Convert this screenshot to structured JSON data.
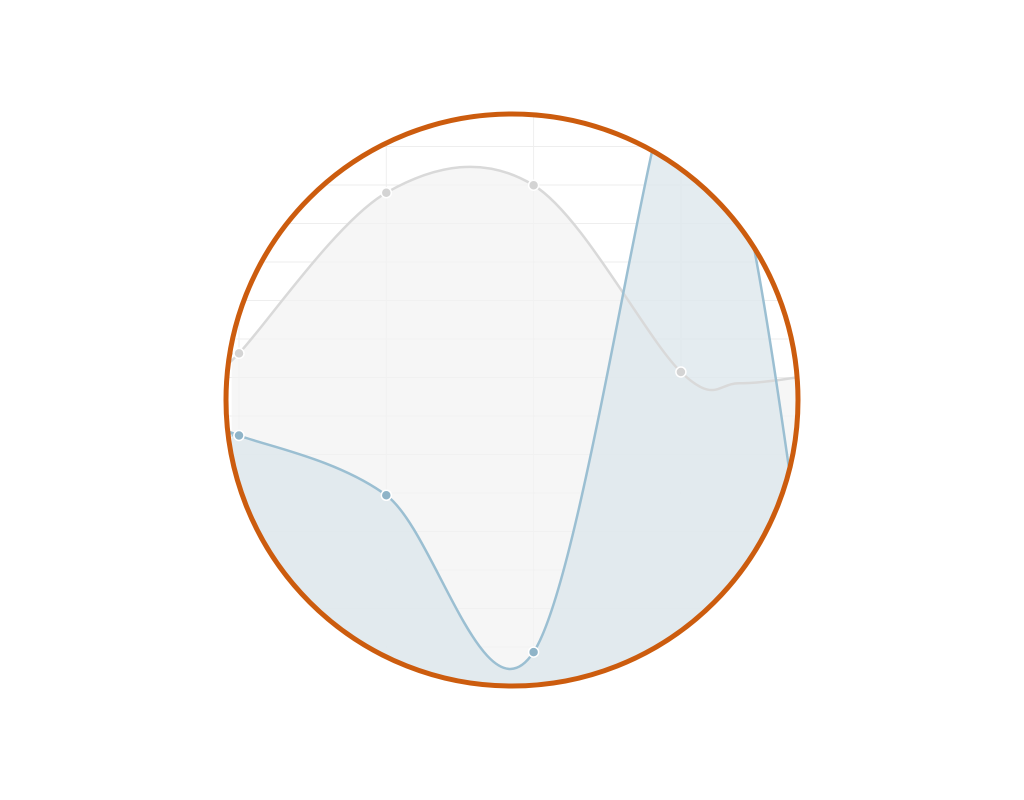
{
  "chart_data": {
    "type": "area",
    "title": "",
    "xlabel": "",
    "ylabel": "",
    "x": [
      0,
      1,
      2,
      3
    ],
    "xlim": [
      -0.05,
      3.87
    ],
    "ylim": [
      0,
      10
    ],
    "grid": true,
    "legend": "none",
    "series": [
      {
        "values": [
          8.8,
          13.1,
          13.3,
          8.3
        ],
        "tail": [
          [
            3.4,
            8.0
          ],
          [
            3.87,
            8.2
          ]
        ]
      },
      {
        "values": [
          6.6,
          5.0,
          0.8,
          17.0
        ],
        "tail": [
          [
            3.45,
            12.5
          ],
          [
            3.87,
            2.0
          ]
        ]
      }
    ],
    "colors": {
      "series1_line": "#d9d9d9",
      "series1_fill": "#f2f2f2",
      "series1_point": "#d4d4d4",
      "series2_line": "#9bbfd2",
      "series2_fill": "#dde7ec",
      "series2_point": "#8fb4c8",
      "ring": "#cc5c0e",
      "grid": "#eeeeee"
    }
  }
}
